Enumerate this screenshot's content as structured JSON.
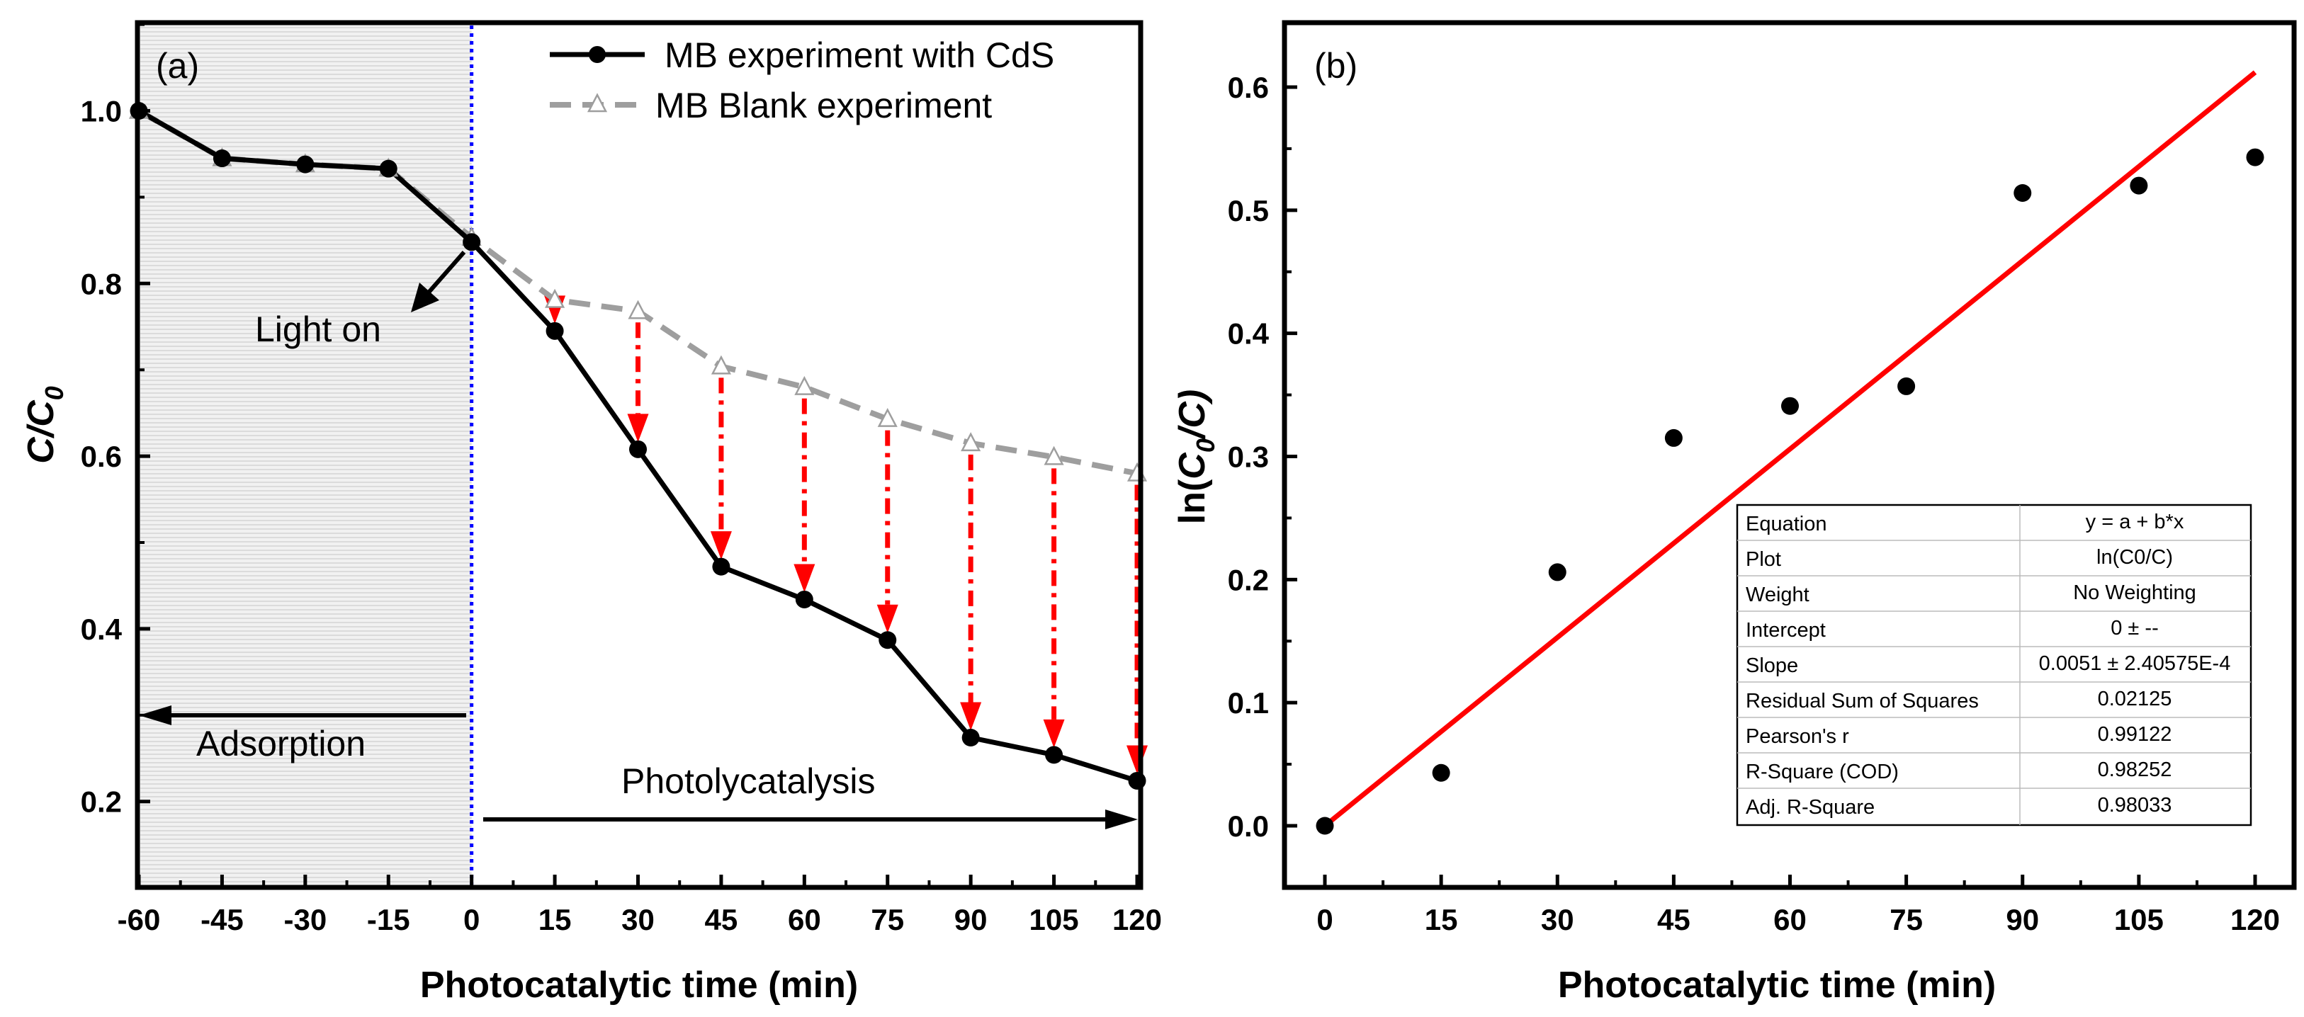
{
  "colors": {
    "axis": "#000000",
    "mb_cds": "#000000",
    "mb_blank": "#9e9e9e",
    "arrow": "#ff0000",
    "fit_line": "#ff0000",
    "light_on_line": "#0000ff",
    "shade": "#eeeeee"
  },
  "chart_data": [
    {
      "panel_label": "(a)",
      "type": "line",
      "xlabel": "Photocatalytic time (min)",
      "ylabel_main": "C/C",
      "ylabel_sub": "0",
      "xlim": [
        -60,
        120
      ],
      "ylim": [
        0.1,
        1.1
      ],
      "xticks": [
        -60,
        -45,
        -30,
        -15,
        0,
        15,
        30,
        45,
        60,
        75,
        90,
        105,
        120
      ],
      "xtick_labels": [
        "-60",
        "-45",
        "-30",
        "-15",
        "0",
        "15",
        "30",
        "45",
        "60",
        "75",
        "90",
        "105",
        "120"
      ],
      "yticks": [
        0.2,
        0.4,
        0.6,
        0.8,
        1.0
      ],
      "ytick_labels": [
        "0.2",
        "0.4",
        "0.6",
        "0.8",
        "1.0"
      ],
      "series": [
        {
          "name": "MB experiment with CdS",
          "marker": "circle",
          "x": [
            -60,
            -45,
            -30,
            -15,
            0,
            15,
            30,
            45,
            60,
            75,
            90,
            105,
            120
          ],
          "y": [
            1.0,
            0.945,
            0.938,
            0.933,
            0.848,
            0.745,
            0.608,
            0.472,
            0.434,
            0.387,
            0.274,
            0.254,
            0.224
          ]
        },
        {
          "name": "MB Blank experiment",
          "marker": "triangle",
          "x": [
            -60,
            -45,
            -30,
            -15,
            0,
            15,
            30,
            45,
            60,
            75,
            90,
            105,
            120
          ],
          "y": [
            1.0,
            0.945,
            0.938,
            0.933,
            0.853,
            0.781,
            0.768,
            0.704,
            0.68,
            0.643,
            0.615,
            0.599,
            0.58
          ]
        }
      ],
      "annotations": {
        "light_on": "Light on",
        "adsorption": "Adsorption",
        "photocatalysis": "Photolycatalysis"
      },
      "legend_position": "top-right"
    },
    {
      "panel_label": "(b)",
      "type": "scatter",
      "xlabel": "Photocatalytic time (min)",
      "ylabel_pre": "ln(",
      "ylabel_c": "C",
      "ylabel_sub": "0",
      "ylabel_post": "/C)",
      "xlim": [
        -8,
        128
      ],
      "ylim": [
        -0.05,
        0.65
      ],
      "xticks": [
        0,
        15,
        30,
        45,
        60,
        75,
        90,
        105,
        120
      ],
      "xtick_labels": [
        "0",
        "15",
        "30",
        "45",
        "60",
        "75",
        "90",
        "105",
        "120"
      ],
      "yticks": [
        0.0,
        0.1,
        0.2,
        0.3,
        0.4,
        0.5,
        0.6
      ],
      "ytick_labels": [
        "0.0",
        "0.1",
        "0.2",
        "0.3",
        "0.4",
        "0.5",
        "0.6"
      ],
      "points": {
        "x": [
          0,
          15,
          30,
          45,
          60,
          75,
          90,
          105,
          120
        ],
        "y": [
          0.0,
          0.043,
          0.206,
          0.315,
          0.341,
          0.357,
          0.514,
          0.52,
          0.543
        ]
      },
      "fit": {
        "intercept": 0,
        "slope": 0.0051,
        "x_range": [
          0,
          120
        ]
      },
      "fit_table": [
        [
          "Equation",
          "y = a + b*x"
        ],
        [
          "Plot",
          "ln(C0/C)"
        ],
        [
          "Weight",
          "No Weighting"
        ],
        [
          "Intercept",
          "0 ± --"
        ],
        [
          "Slope",
          "0.0051 ± 2.40575E-4"
        ],
        [
          "Residual Sum of Squares",
          "0.02125"
        ],
        [
          "Pearson's r",
          "0.99122"
        ],
        [
          "R-Square (COD)",
          "0.98252"
        ],
        [
          "Adj. R-Square",
          "0.98033"
        ]
      ]
    }
  ]
}
